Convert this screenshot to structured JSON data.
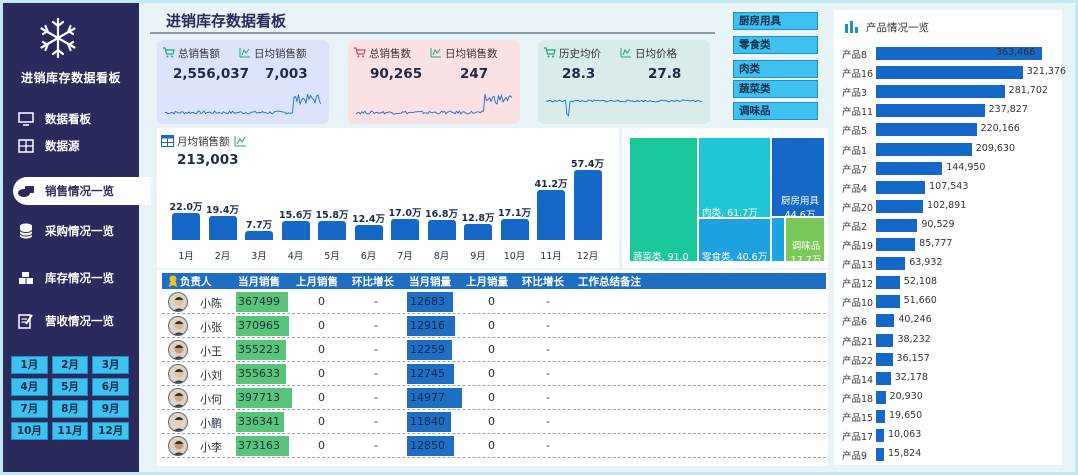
{
  "app": {
    "title": "进销库存数据看板"
  },
  "nav": [
    {
      "label": "数据看板",
      "icon": "monitor-icon"
    },
    {
      "label": "数据源",
      "icon": "table-icon"
    },
    {
      "label": "销售情况一览",
      "icon": "money-icon"
    },
    {
      "label": "采购情况一览",
      "icon": "database-icon"
    },
    {
      "label": "库存情况一览",
      "icon": "boxes-icon"
    },
    {
      "label": "营收情况一览",
      "icon": "edit-icon"
    }
  ],
  "months": [
    "1月",
    "2月",
    "3月",
    "4月",
    "5月",
    "6月",
    "7月",
    "8月",
    "9月",
    "10月",
    "11月",
    "12月"
  ],
  "header": {
    "title": "进销库存数据看板"
  },
  "kpis": [
    {
      "label1": "总销售额",
      "value1": "2,556,037",
      "label2": "日均销售额",
      "value2": "7,003",
      "color": "#dbe4fb"
    },
    {
      "label1": "总销售数",
      "value1": "90,265",
      "label2": "日均销售数",
      "value2": "247",
      "color": "#fbe0e4"
    },
    {
      "label1": "历史均价",
      "value1": "28.3",
      "label2": "日均价格",
      "value2": "27.8",
      "color": "#d8ecec"
    }
  ],
  "categories": [
    "厨房用具",
    "零食类",
    "肉类",
    "蔬菜类",
    "调味品"
  ],
  "monthly": {
    "title": "月均销售额",
    "value": "213,003",
    "chart_data": {
      "type": "bar",
      "categories": [
        "1月",
        "2月",
        "3月",
        "4月",
        "5月",
        "6月",
        "7月",
        "8月",
        "9月",
        "10月",
        "11月",
        "12月"
      ],
      "values": [
        22.0,
        19.4,
        7.7,
        15.6,
        15.8,
        12.4,
        17.0,
        16.8,
        12.8,
        17.1,
        41.2,
        57.4
      ],
      "labels": [
        "22.0万",
        "19.4万",
        "7.7万",
        "15.6万",
        "15.8万",
        "12.4万",
        "17.0万",
        "16.8万",
        "12.8万",
        "17.1万",
        "41.2万",
        "57.4万"
      ]
    }
  },
  "treemap": [
    {
      "name": "蔬菜类",
      "value": "91.0万",
      "color": "#18c89c"
    },
    {
      "name": "肉类",
      "value": "61.7万",
      "color": "#1fc6d6"
    },
    {
      "name": "零食类",
      "value": "40.6万",
      "color": "#1ea2e0"
    },
    {
      "name": "厨房用具",
      "value": "44.6万",
      "color": "#1668c6"
    },
    {
      "name": "调味品",
      "value": "17.7万",
      "color": "#7ac95a"
    }
  ],
  "table": {
    "headers": [
      "负责人",
      "当月销售",
      "上月销售",
      "环比增长",
      "当月销量",
      "上月销量",
      "环比增长",
      "工作总结备注"
    ],
    "rows": [
      {
        "name": "小陈",
        "sales": "367499",
        "prev_sales": "0",
        "growth": "-",
        "qty": "12683",
        "prev_qty": "0",
        "growth2": "-",
        "sales_frac": 0.72,
        "qty_frac": 0.7
      },
      {
        "name": "小张",
        "sales": "370965",
        "prev_sales": "0",
        "growth": "-",
        "qty": "12916",
        "prev_qty": "0",
        "growth2": "-",
        "sales_frac": 0.73,
        "qty_frac": 0.72
      },
      {
        "name": "小王",
        "sales": "355223",
        "prev_sales": "0",
        "growth": "-",
        "qty": "12259",
        "prev_qty": "0",
        "growth2": "-",
        "sales_frac": 0.7,
        "qty_frac": 0.68
      },
      {
        "name": "小刘",
        "sales": "355633",
        "prev_sales": "0",
        "growth": "-",
        "qty": "12745",
        "prev_qty": "0",
        "growth2": "-",
        "sales_frac": 0.7,
        "qty_frac": 0.71
      },
      {
        "name": "小何",
        "sales": "397713",
        "prev_sales": "0",
        "growth": "-",
        "qty": "14977",
        "prev_qty": "0",
        "growth2": "-",
        "sales_frac": 0.78,
        "qty_frac": 0.83
      },
      {
        "name": "小鹏",
        "sales": "336341",
        "prev_sales": "0",
        "growth": "-",
        "qty": "11840",
        "prev_qty": "0",
        "growth2": "-",
        "sales_frac": 0.66,
        "qty_frac": 0.66
      },
      {
        "name": "小李",
        "sales": "373163",
        "prev_sales": "0",
        "growth": "-",
        "qty": "12850",
        "prev_qty": "0",
        "growth2": "-",
        "sales_frac": 0.73,
        "qty_frac": 0.71
      }
    ]
  },
  "products": {
    "title": "产品情况一览",
    "chart_data": {
      "type": "bar",
      "categories": [
        "产品8",
        "产品16",
        "产品3",
        "产品11",
        "产品5",
        "产品1",
        "产品7",
        "产品4",
        "产品20",
        "产品2",
        "产品19",
        "产品13",
        "产品12",
        "产品10",
        "产品6",
        "产品21",
        "产品22",
        "产品14",
        "产品18",
        "产品15",
        "产品17",
        "产品9"
      ],
      "values": [
        363466,
        321376,
        281702,
        237827,
        220166,
        209630,
        144950,
        107543,
        102891,
        90529,
        85777,
        63932,
        52108,
        51660,
        40246,
        38232,
        36157,
        32178,
        20930,
        19650,
        10063,
        15824
      ],
      "labels": [
        "363,466",
        "321,376",
        "281,702",
        "237,827",
        "220,166",
        "209,630",
        "144,950",
        "107,543",
        "102,891",
        "90,529",
        "85,777",
        "63,932",
        "52,108",
        "51,660",
        "40,246",
        "38,232",
        "36,157",
        "32,178",
        "20,930",
        "19,650",
        "10,063",
        "15,824"
      ]
    }
  }
}
